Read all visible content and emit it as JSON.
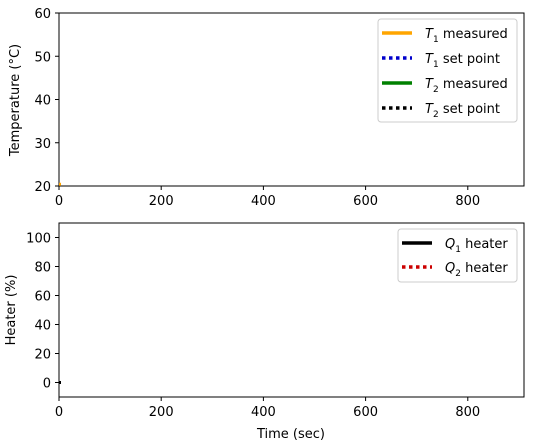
{
  "chart_data": [
    {
      "type": "line",
      "xlabel": "",
      "ylabel": "Temperature (°C)",
      "xlim": [
        0,
        910
      ],
      "ylim": [
        20,
        60
      ],
      "xticks": [
        "0",
        "200",
        "400",
        "600",
        "800"
      ],
      "yticks": [
        "20",
        "30",
        "40",
        "50",
        "60"
      ],
      "grid": false,
      "legend_position": "top-right",
      "series": [
        {
          "name": "T1 measured",
          "legend_main": "T",
          "legend_sub": "1",
          "legend_rest": " measured",
          "color": "#FFA500",
          "style": "solid",
          "x": [
            0
          ],
          "y": [
            20.4
          ]
        },
        {
          "name": "T1 set point",
          "legend_main": "T",
          "legend_sub": "1",
          "legend_rest": " set point",
          "color": "#0000CC",
          "style": "dotted",
          "x": [],
          "y": []
        },
        {
          "name": "T2 measured",
          "legend_main": "T",
          "legend_sub": "2",
          "legend_rest": " measured",
          "color": "#008000",
          "style": "solid",
          "x": [],
          "y": []
        },
        {
          "name": "T2 set point",
          "legend_main": "T",
          "legend_sub": "2",
          "legend_rest": " set point",
          "color": "#000000",
          "style": "dotted",
          "x": [],
          "y": []
        }
      ]
    },
    {
      "type": "line",
      "xlabel": "Time (sec)",
      "ylabel": "Heater (%)",
      "xlim": [
        0,
        910
      ],
      "ylim": [
        -10,
        110
      ],
      "xticks": [
        "0",
        "200",
        "400",
        "600",
        "800"
      ],
      "yticks": [
        "0",
        "20",
        "40",
        "60",
        "80",
        "100"
      ],
      "grid": false,
      "legend_position": "top-right",
      "series": [
        {
          "name": "Q1 heater",
          "legend_main": "Q",
          "legend_sub": "1",
          "legend_rest": " heater",
          "color": "#000000",
          "style": "solid",
          "x": [
            0
          ],
          "y": [
            0
          ]
        },
        {
          "name": "Q2 heater",
          "legend_main": "Q",
          "legend_sub": "2",
          "legend_rest": " heater",
          "color": "#CC0000",
          "style": "dotted",
          "x": [],
          "y": []
        }
      ]
    }
  ]
}
